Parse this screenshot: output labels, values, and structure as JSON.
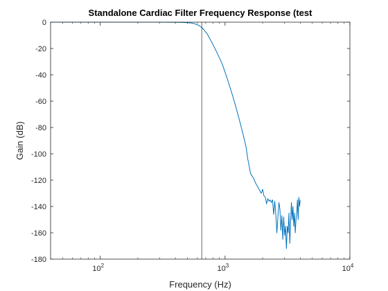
{
  "chart_data": {
    "type": "line",
    "title": "Standalone Cardiac Filter Frequency Response (test",
    "xlabel": "Frequency (Hz)",
    "ylabel": "Gain (dB)",
    "xscale": "log",
    "xlim": [
      40,
      10000
    ],
    "ylim": [
      -180,
      0
    ],
    "xticks": [
      {
        "value": 100,
        "base": "10",
        "exp": "2"
      },
      {
        "value": 1000,
        "base": "10",
        "exp": "3"
      },
      {
        "value": 10000,
        "base": "10",
        "exp": "4"
      }
    ],
    "yticks": [
      0,
      -20,
      -40,
      -60,
      -80,
      -100,
      -120,
      -140,
      -160,
      -180
    ],
    "grid": false,
    "line_color": "#0072BD",
    "marker_line_color": "#262626",
    "cutoff_line_x": 650,
    "series": [
      {
        "x": [
          40,
          60,
          100,
          200,
          300,
          400,
          450,
          500,
          530,
          560,
          590,
          620,
          650,
          680,
          720,
          760,
          800,
          850,
          900,
          950,
          1000,
          1050,
          1100,
          1150,
          1200,
          1250,
          1300,
          1350,
          1400,
          1450,
          1480,
          1500,
          1520,
          1550,
          1580,
          1600,
          1650,
          1700,
          1750,
          1800,
          1850,
          1900,
          1950,
          2000,
          2050,
          2100,
          2150,
          2200,
          2250,
          2300,
          2350,
          2400,
          2450,
          2500,
          2550,
          2600,
          2650,
          2700,
          2750,
          2800,
          2850,
          2900,
          2950,
          3000,
          3050,
          3100,
          3150,
          3200,
          3250,
          3300,
          3350,
          3400,
          3450,
          3500,
          3550,
          3600,
          3650,
          3700,
          3750,
          3800,
          3850,
          3900,
          3950,
          4000
        ],
        "y": [
          0,
          0,
          0,
          0,
          0,
          -0.1,
          -0.2,
          -0.4,
          -0.6,
          -1.0,
          -1.7,
          -2.7,
          -4.0,
          -6.0,
          -9.0,
          -13.0,
          -17.0,
          -22.0,
          -27.0,
          -32.0,
          -38.0,
          -44.0,
          -50.0,
          -56.0,
          -62.0,
          -68.0,
          -74.0,
          -80.0,
          -86.0,
          -92.0,
          -96.0,
          -100.0,
          -104.0,
          -108.0,
          -112.0,
          -115.0,
          -117.0,
          -119.0,
          -122.0,
          -124.0,
          -126.0,
          -128.0,
          -130.0,
          -127.0,
          -132.0,
          -133.0,
          -138.0,
          -134.0,
          -136.0,
          -135.0,
          -137.0,
          -135.0,
          -146.0,
          -136.0,
          -146.0,
          -160.0,
          -148.0,
          -137.0,
          -142.0,
          -158.0,
          -147.0,
          -165.0,
          -148.0,
          -162.0,
          -155.0,
          -172.0,
          -155.0,
          -160.0,
          -145.0,
          -168.0,
          -152.0,
          -137.0,
          -150.0,
          -140.0,
          -155.0,
          -145.0,
          -160.0,
          -150.0,
          -145.0,
          -135.0,
          -150.0,
          -133.0,
          -140.0,
          -135.0
        ]
      }
    ]
  }
}
